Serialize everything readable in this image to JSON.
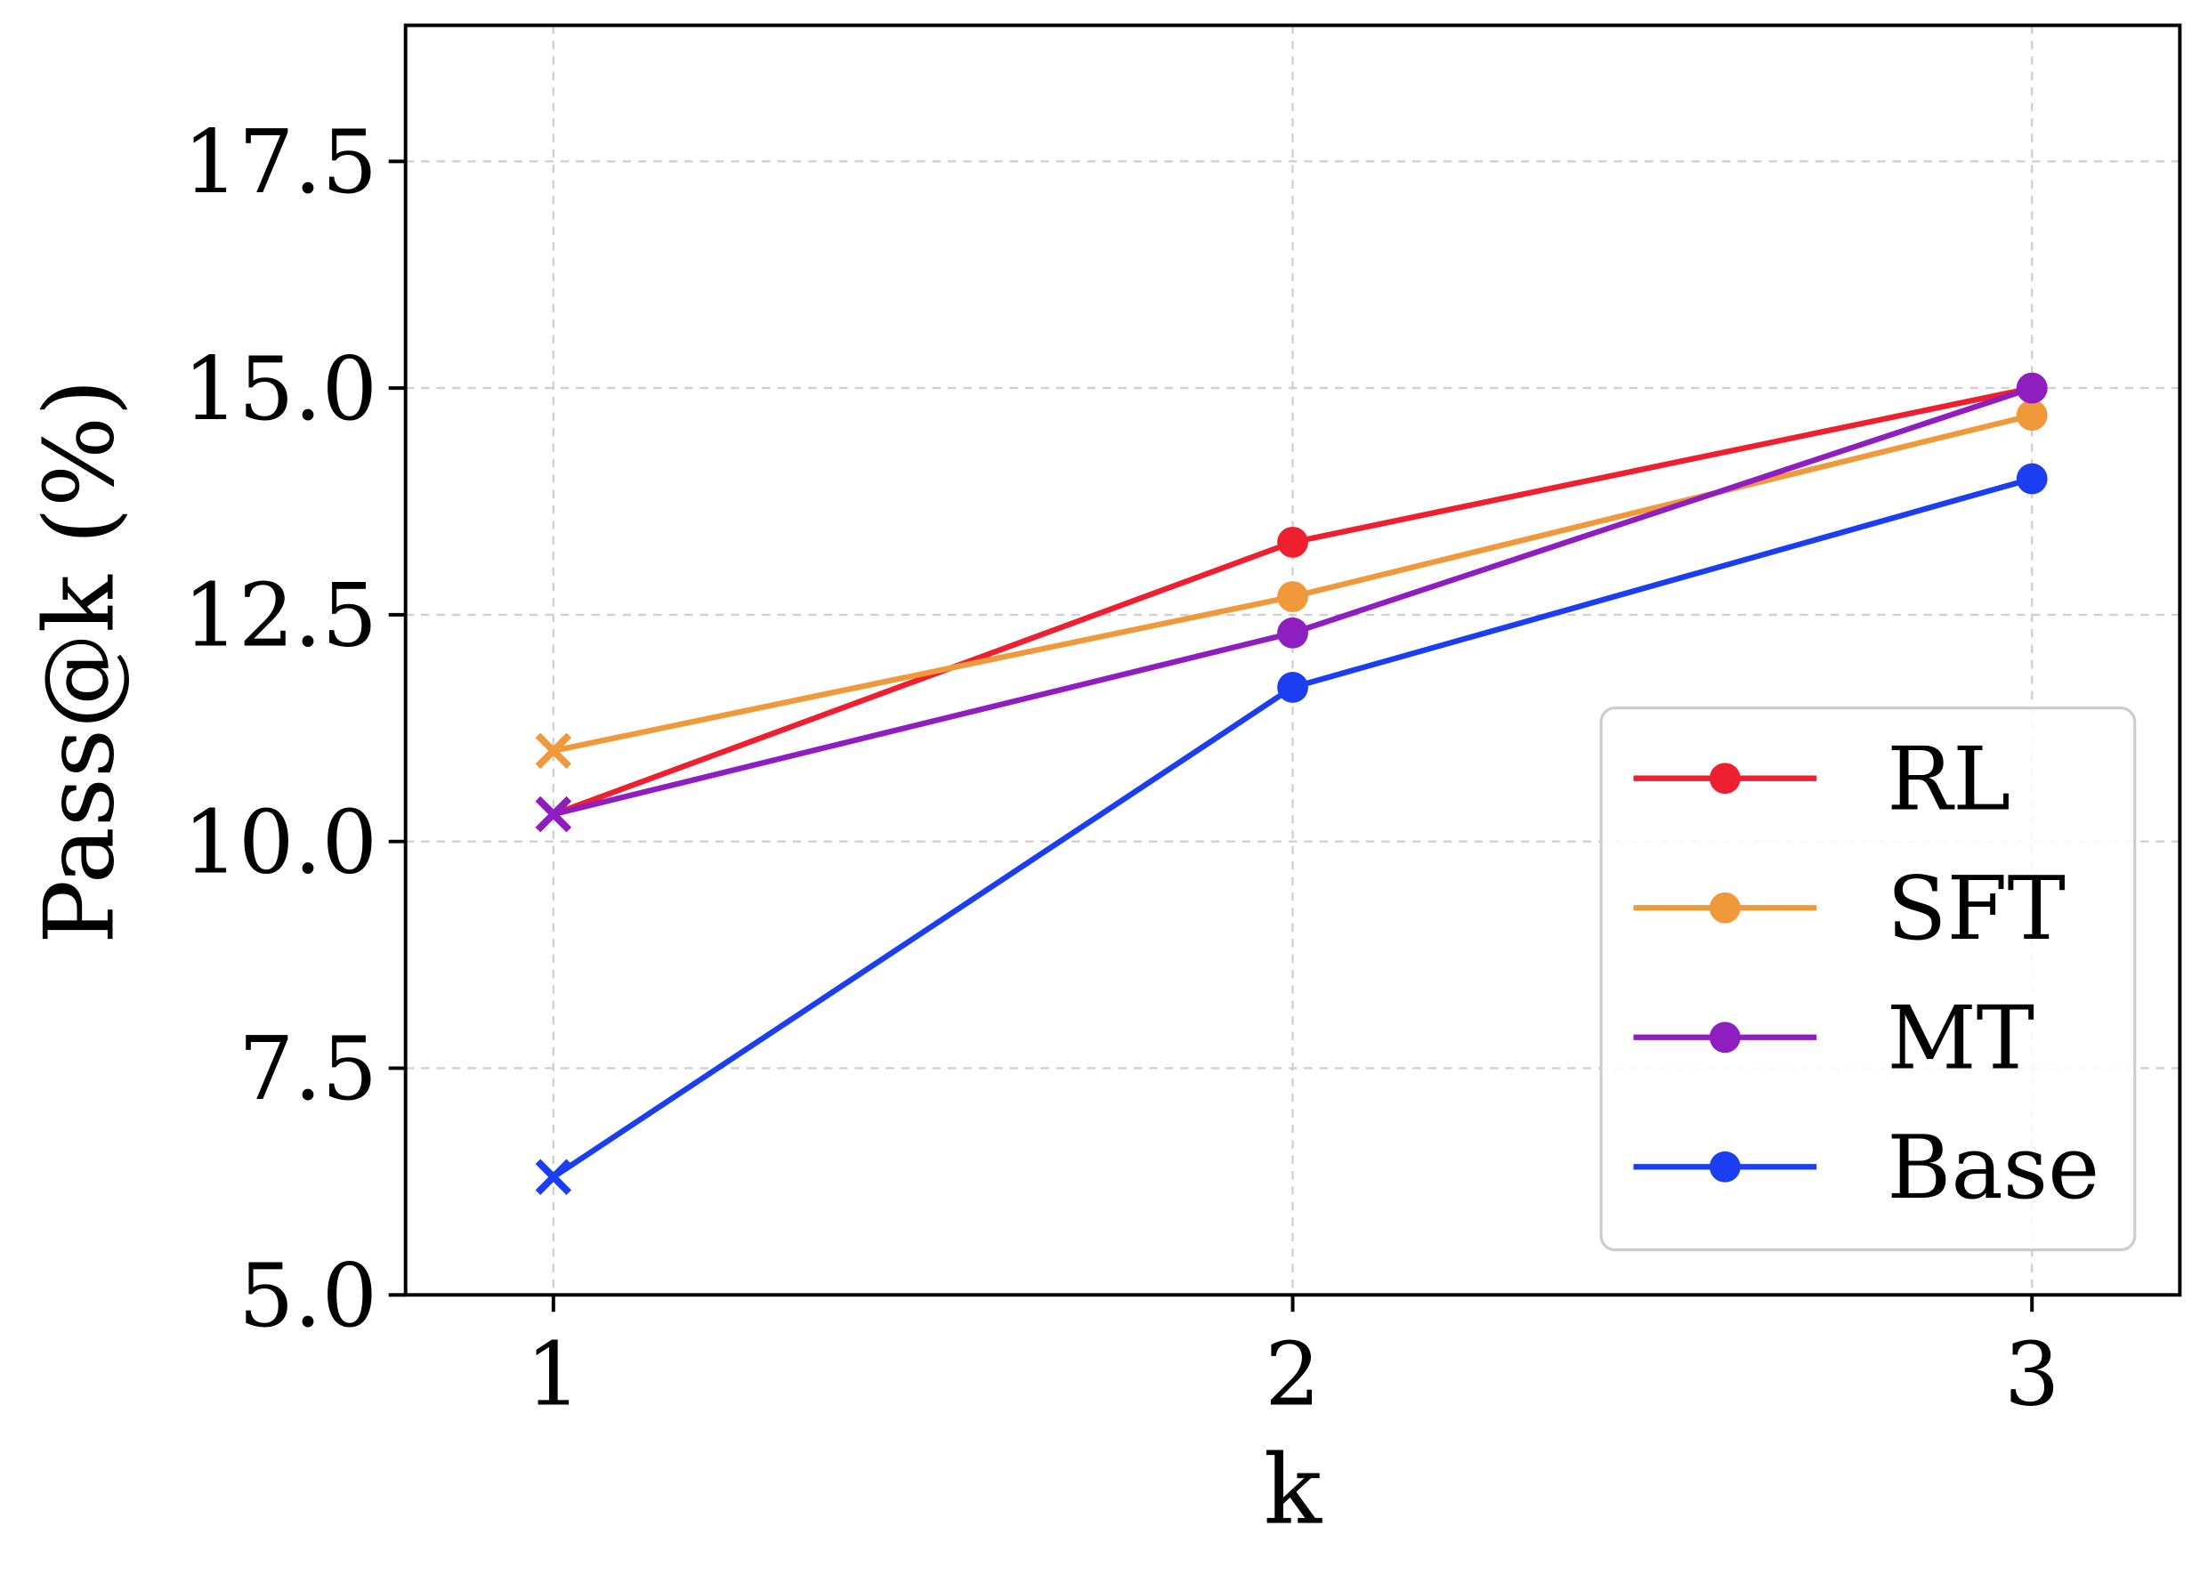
{
  "chart_data": {
    "type": "line",
    "title": "",
    "xlabel": "k",
    "ylabel": "Pass@k (%)",
    "x": [
      1,
      2,
      3
    ],
    "xlim": [
      0.8,
      3.2
    ],
    "ylim": [
      5.0,
      19.0
    ],
    "xticks": [
      1,
      2,
      3
    ],
    "xtick_labels": [
      "1",
      "2",
      "3"
    ],
    "yticks": [
      5.0,
      7.5,
      10.0,
      12.5,
      15.0,
      17.5
    ],
    "ytick_labels": [
      "5.0",
      "7.5",
      "10.0",
      "12.5",
      "15.0",
      "17.5"
    ],
    "grid": true,
    "legend_position": "lower-right",
    "series": [
      {
        "name": "RL",
        "color": "#ee2030",
        "values": [
          10.3,
          13.3,
          15.0
        ],
        "markers": [
          "x",
          "circle",
          "circle"
        ]
      },
      {
        "name": "SFT",
        "color": "#f0993a",
        "values": [
          11.0,
          12.7,
          14.7
        ],
        "markers": [
          "x",
          "circle",
          "circle"
        ]
      },
      {
        "name": "MT",
        "color": "#8e1ec0",
        "values": [
          10.3,
          12.3,
          15.0
        ],
        "markers": [
          "x",
          "circle",
          "circle"
        ]
      },
      {
        "name": "Base",
        "color": "#1a3ef0",
        "values": [
          6.3,
          11.7,
          14.0
        ],
        "markers": [
          "x",
          "circle",
          "circle"
        ]
      }
    ]
  }
}
